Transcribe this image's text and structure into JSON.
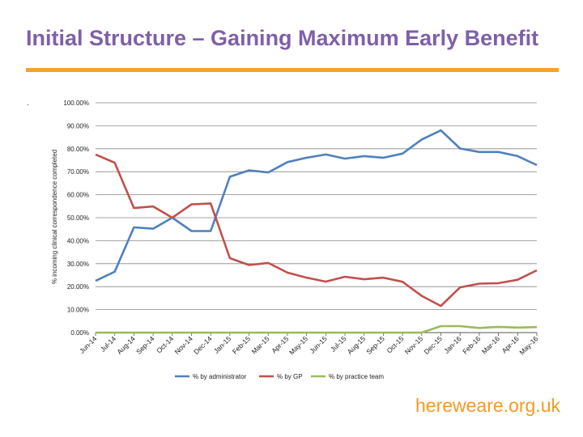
{
  "slide": {
    "title": "Initial Structure – Gaining Maximum Early Benefit",
    "bullet": ".",
    "footer": "hereweare.org.uk"
  },
  "colors": {
    "title": "#7f5fa8",
    "rule": "#f5a623",
    "footer": "#f59a22",
    "admin": "#4f81bd",
    "gp": "#c0504d",
    "practice": "#9bbb59"
  },
  "chart_data": {
    "type": "line",
    "title": "",
    "xlabel": "",
    "ylabel": "% incoming clinical correspondence completed",
    "ylim": [
      0,
      100
    ],
    "yticks": [
      "0.00%",
      "10.00%",
      "20.00%",
      "30.00%",
      "40.00%",
      "50.00%",
      "60.00%",
      "70.00%",
      "80.00%",
      "90.00%",
      "100.00%"
    ],
    "categories": [
      "Jun-14",
      "Jul-14",
      "Aug-14",
      "Sep-14",
      "Oct-14",
      "Nov-14",
      "Dec-14",
      "Jan-15",
      "Feb-15",
      "Mar-15",
      "Apr-15",
      "May-15",
      "Jun-15",
      "Jul-15",
      "Aug-15",
      "Sep-15",
      "Oct-15",
      "Nov-15",
      "Dec-15",
      "Jan-16",
      "Feb-16",
      "Mar-16",
      "Apr-16",
      "May-16"
    ],
    "grid": true,
    "legend_position": "bottom",
    "series": [
      {
        "name": "% by administrator",
        "color": "#4f81bd",
        "values": [
          22.5,
          26.5,
          45.8,
          45.2,
          50.0,
          44.2,
          44.2,
          67.8,
          70.6,
          69.7,
          74.2,
          76.1,
          77.5,
          75.7,
          76.8,
          76.1,
          77.9,
          84.0,
          88.0,
          80.1,
          78.6,
          78.6,
          76.8,
          72.9
        ]
      },
      {
        "name": "% by GP",
        "color": "#c0504d",
        "values": [
          77.5,
          73.9,
          54.2,
          54.9,
          50.0,
          55.8,
          56.2,
          32.4,
          29.4,
          30.3,
          26.1,
          23.9,
          22.2,
          24.3,
          23.2,
          23.9,
          22.1,
          16.0,
          11.6,
          19.7,
          21.3,
          21.5,
          23.0,
          27.1
        ]
      },
      {
        "name": "% by practice team",
        "color": "#9bbb59",
        "values": [
          0,
          0,
          0,
          0,
          0,
          0,
          0,
          0,
          0,
          0,
          0,
          0,
          0,
          0,
          0,
          0,
          0,
          0,
          2.8,
          2.8,
          2.0,
          2.5,
          2.2,
          2.4
        ]
      }
    ]
  }
}
